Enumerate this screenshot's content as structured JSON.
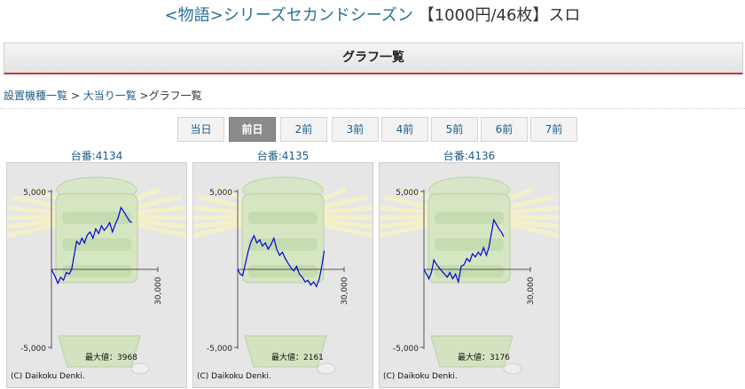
{
  "header": {
    "title_link": "<物語>シリーズセカンドシーズン",
    "title_rest": "【1000円/46枚】スロ"
  },
  "section": {
    "title": "グラフ一覧"
  },
  "breadcrumb": {
    "item1": "設置機種一覧",
    "sep1": " >",
    "item2": "大当り一覧",
    "sep2": " >",
    "item3": "グラフ一覧"
  },
  "tabs": [
    "当日",
    "前日",
    "2前",
    "3前",
    "4前",
    "5前",
    "6前",
    "7前"
  ],
  "active_tab": 1,
  "charts": [
    {
      "label": "台番:4134",
      "max_text": "最大値：3968",
      "copyright": "(C) Daikoku Denki.",
      "chart_data": {
        "type": "line",
        "ytick_labels": [
          "5,000",
          "-5,000"
        ],
        "xtick_label": "30,000",
        "ylim": [
          -5000,
          5000
        ],
        "xlim": [
          0,
          30000
        ],
        "color": "#0000dd",
        "x": [
          0,
          900,
          1800,
          2600,
          3400,
          4200,
          5000,
          5700,
          6400,
          7100,
          7900,
          8600,
          9300,
          10100,
          10900,
          11700,
          12500,
          13300,
          14100,
          14900,
          15600,
          16400,
          17200,
          18000,
          18800,
          19600,
          20400,
          21200,
          22000,
          22700
        ],
        "y": [
          0,
          -400,
          -900,
          -500,
          -700,
          -200,
          -300,
          0,
          900,
          1800,
          1600,
          2000,
          1700,
          2200,
          2400,
          2000,
          2600,
          2300,
          2800,
          2500,
          2700,
          3000,
          2400,
          2900,
          3300,
          3968,
          3700,
          3400,
          3100,
          3000
        ]
      }
    },
    {
      "label": "台番:4135",
      "max_text": "最大値：2161",
      "copyright": "(C) Daikoku Denki.",
      "chart_data": {
        "type": "line",
        "ytick_labels": [
          "5,000",
          "-5,000"
        ],
        "xtick_label": "30,000",
        "ylim": [
          -5000,
          5000
        ],
        "xlim": [
          0,
          30000
        ],
        "color": "#0000dd",
        "x": [
          0,
          700,
          1400,
          2200,
          3000,
          3800,
          4600,
          5400,
          6200,
          7000,
          7800,
          8600,
          9400,
          10200,
          11000,
          11800,
          12600,
          13400,
          14200,
          15000,
          15800,
          16600,
          17400,
          18200,
          19000,
          19800,
          20600,
          21400,
          22200,
          23000,
          23700,
          24400
        ],
        "y": [
          0,
          -300,
          -400,
          400,
          1200,
          1800,
          2161,
          1700,
          1900,
          1500,
          1700,
          1300,
          1600,
          2000,
          1300,
          900,
          1100,
          700,
          400,
          100,
          -100,
          200,
          -300,
          -500,
          -800,
          -700,
          -1000,
          -800,
          -1100,
          -600,
          200,
          1200
        ]
      }
    },
    {
      "label": "台番:4136",
      "max_text": "最大値：3176",
      "copyright": "(C) Daikoku Denki.",
      "chart_data": {
        "type": "line",
        "ytick_labels": [
          "5,000",
          "-5,000"
        ],
        "xtick_label": "30,000",
        "ylim": [
          -5000,
          5000
        ],
        "xlim": [
          0,
          30000
        ],
        "color": "#0000dd",
        "x": [
          0,
          700,
          1400,
          2100,
          2800,
          3600,
          4300,
          5000,
          5800,
          6600,
          7300,
          8100,
          8900,
          9700,
          10500,
          11300,
          12100,
          12900,
          13700,
          14500,
          15300,
          16000,
          16800,
          17600,
          18300,
          19000,
          19700,
          20400,
          21100,
          21800,
          22500
        ],
        "y": [
          0,
          -300,
          -600,
          -200,
          600,
          300,
          100,
          -100,
          -300,
          -500,
          -200,
          -600,
          -300,
          -800,
          200,
          300,
          700,
          500,
          1000,
          800,
          1100,
          900,
          1400,
          900,
          1400,
          2300,
          3176,
          2900,
          2600,
          2400,
          2100
        ]
      }
    }
  ]
}
